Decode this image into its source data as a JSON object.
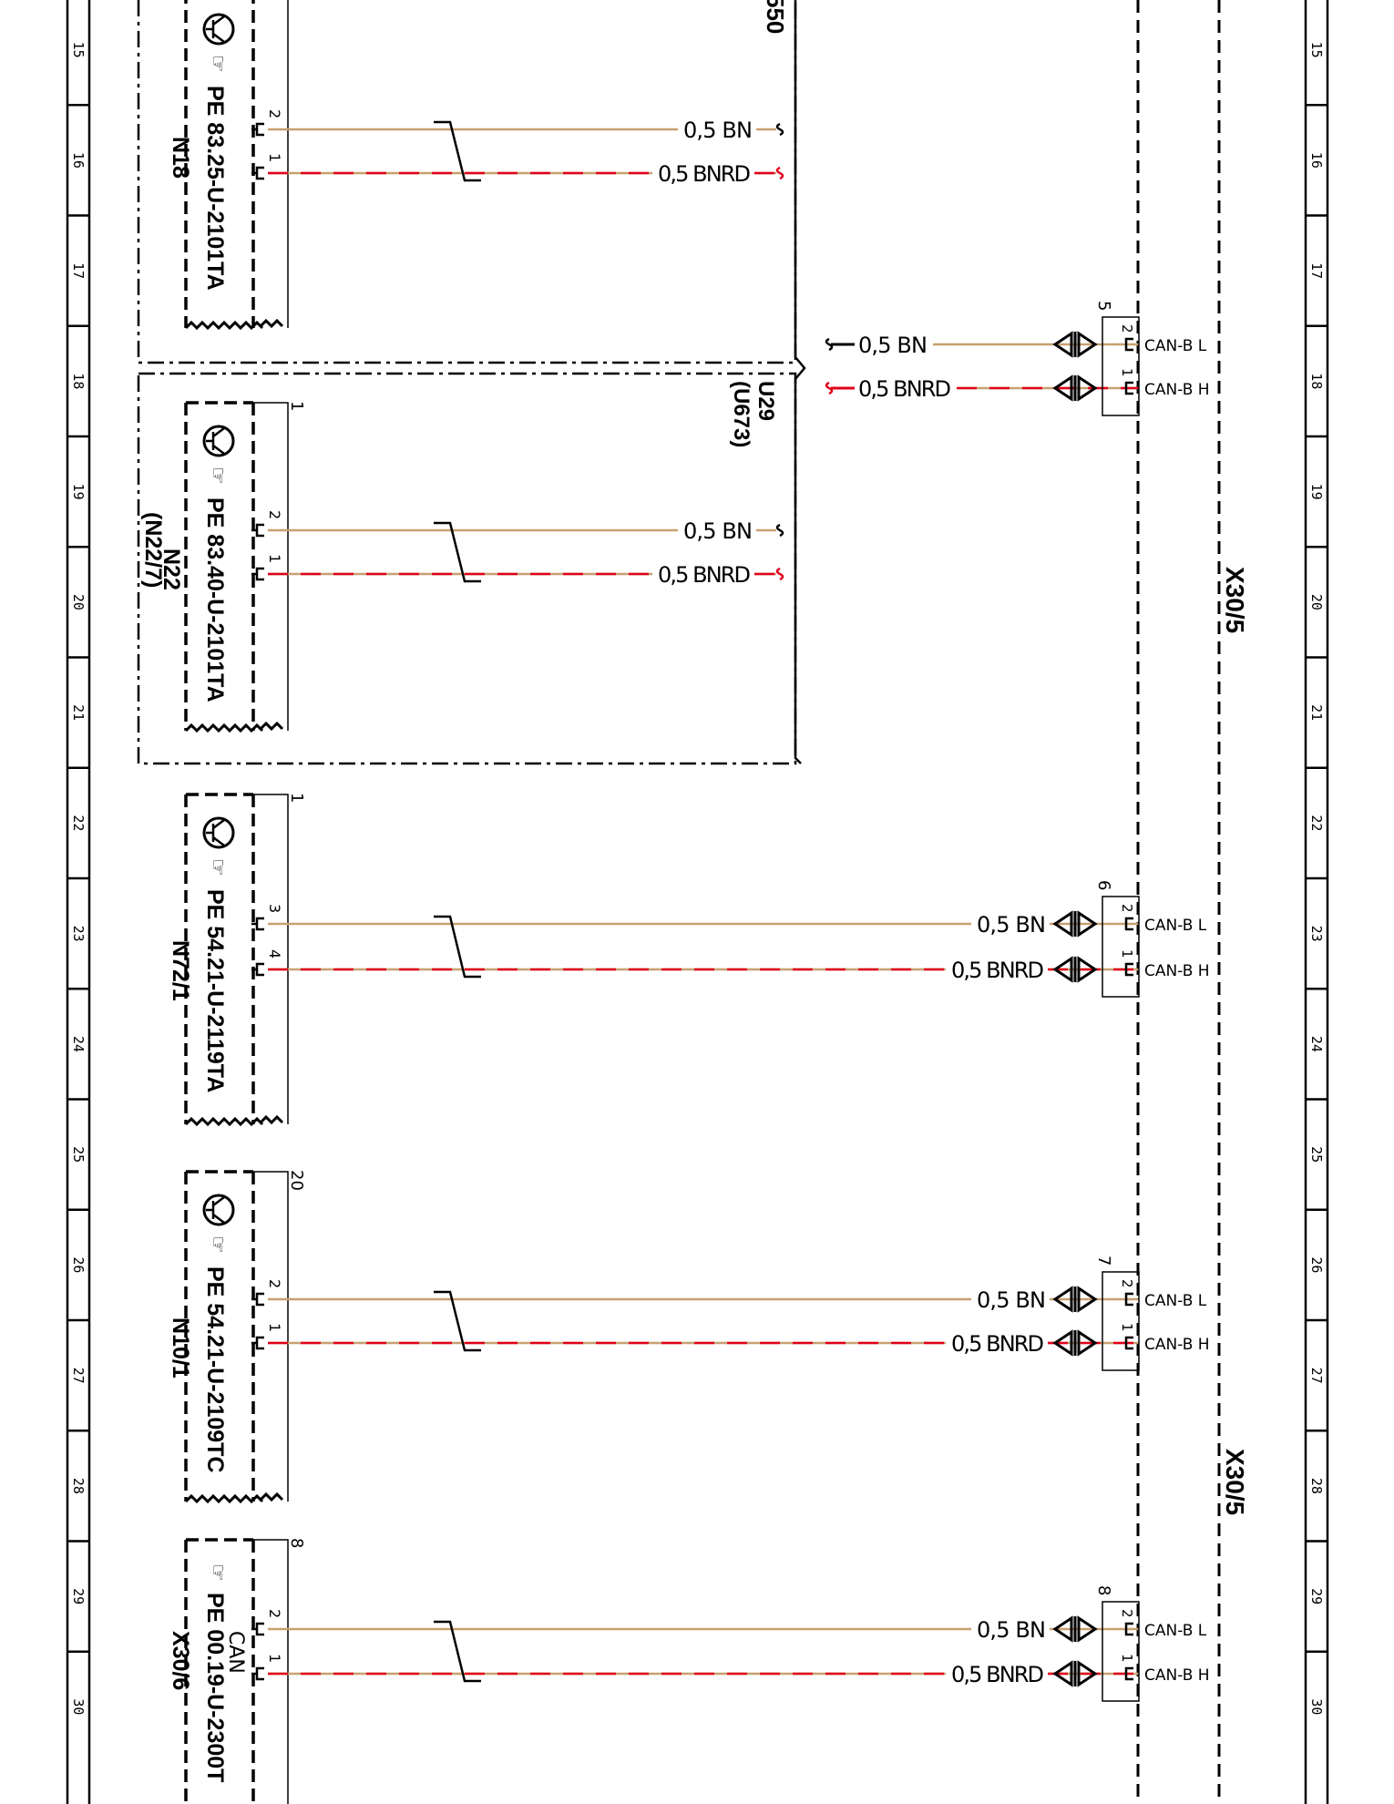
{
  "row_labels": [
    "15",
    "16",
    "17",
    "18",
    "19",
    "20",
    "21",
    "22",
    "23",
    "24",
    "25",
    "26",
    "27",
    "28",
    "29",
    "30"
  ],
  "colors": {
    "wire_bn": "#c8a070",
    "wire_red": "#e0001a",
    "line": "#000000"
  },
  "splice_group": {
    "code_top": "550",
    "code": "U29",
    "code_alt": "(U673)"
  },
  "connector_bus": {
    "label_upper": "X30/5",
    "label_lower": "X30/5"
  },
  "modules": [
    {
      "name": "N18",
      "alt_name": "",
      "part_code": "PE 83.25-U-2101TA",
      "ref_num": "",
      "wires": [
        {
          "pin": "2",
          "spec": "0,5 BN",
          "color": "bn"
        },
        {
          "pin": "1",
          "spec": "0,5 BNRD",
          "color": "bnrd"
        }
      ]
    },
    {
      "name": "N22",
      "alt_name": "(N22/7)",
      "part_code": "PE 83.40-U-2101TA",
      "ref_num": "1",
      "wires": [
        {
          "pin": "2",
          "spec": "0,5 BN",
          "color": "bn"
        },
        {
          "pin": "1",
          "spec": "0,5 BNRD",
          "color": "bnrd"
        }
      ]
    },
    {
      "name": "N72/1",
      "alt_name": "",
      "part_code": "PE 54.21-U-2119TA",
      "ref_num": "1",
      "wires": [
        {
          "pin": "3",
          "spec": "0,5 BN",
          "color": "bn"
        },
        {
          "pin": "4",
          "spec": "0,5 BNRD",
          "color": "bnrd"
        }
      ]
    },
    {
      "name": "N10/1",
      "alt_name": "",
      "part_code": "PE 54.21-U-2109TC",
      "ref_num": "20",
      "wires": [
        {
          "pin": "2",
          "spec": "0,5 BN",
          "color": "bn"
        },
        {
          "pin": "1",
          "spec": "0,5 BNRD",
          "color": "bnrd"
        }
      ]
    },
    {
      "name": "X30/6",
      "alt_name": "",
      "part_code": "PE 00.19-U-2300T",
      "ref_num": "8",
      "sub_label": "CAN",
      "wires": [
        {
          "pin": "2",
          "spec": "0,5 BN",
          "color": "bn"
        },
        {
          "pin": "1",
          "spec": "0,5 BNRD",
          "color": "bnrd"
        }
      ]
    }
  ],
  "splice_wires": [
    {
      "spec": "0,5 BN",
      "color": "bn"
    },
    {
      "spec": "0,5 BNRD",
      "color": "bnrd"
    }
  ],
  "connector_pins": [
    {
      "group": "5",
      "pin_l": "2",
      "pin_h": "1",
      "signal_l": "CAN-B L",
      "signal_h": "CAN-B H"
    },
    {
      "group": "6",
      "pin_l": "2",
      "pin_h": "1",
      "signal_l": "CAN-B L",
      "signal_h": "CAN-B H"
    },
    {
      "group": "7",
      "pin_l": "2",
      "pin_h": "1",
      "signal_l": "CAN-B L",
      "signal_h": "CAN-B H"
    },
    {
      "group": "8",
      "pin_l": "2",
      "pin_h": "1",
      "signal_l": "CAN-B L",
      "signal_h": "CAN-B H"
    }
  ]
}
